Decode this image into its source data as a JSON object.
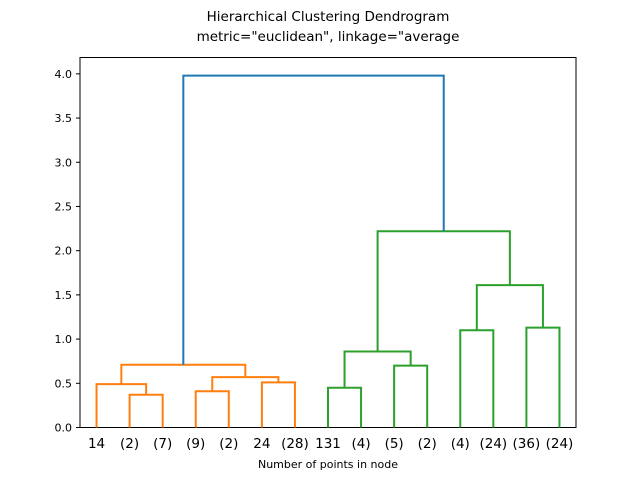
{
  "figure": {
    "kind": "matplotlib-dendrogram-plot"
  },
  "chart_data": {
    "type": "dendrogram",
    "title": "Hierarchical Clustering Dendrogram",
    "subtitle": "metric=\"euclidean\", linkage=\"average",
    "xlabel": "Number of points in node",
    "ylabel": "",
    "grid": false,
    "legend": "none",
    "ylim": [
      0,
      4.185
    ],
    "yticks": [
      "0.0",
      "0.5",
      "1.0",
      "1.5",
      "2.0",
      "2.5",
      "3.0",
      "3.5",
      "4.0"
    ],
    "leaf_labels": [
      "14",
      "(2)",
      "(7)",
      "(9)",
      "(2)",
      "24",
      "(28)",
      "131",
      "(4)",
      "(5)",
      "(2)",
      "(4)",
      "(24)",
      "(36)",
      "(24)"
    ],
    "colors": {
      "blue": "#1f77b4",
      "orange": "#ff7f0e",
      "green": "#2ca02c",
      "axis": "#000000"
    },
    "merges": [
      {
        "id": "m1",
        "left": "L1",
        "right": "L2",
        "height": 0.37,
        "color": "orange"
      },
      {
        "id": "m2",
        "left": "L0",
        "right": "m1",
        "height": 0.49,
        "color": "orange"
      },
      {
        "id": "m3",
        "left": "L3",
        "right": "L4",
        "height": 0.41,
        "color": "orange"
      },
      {
        "id": "m4",
        "left": "L5",
        "right": "L6",
        "height": 0.51,
        "color": "orange"
      },
      {
        "id": "m5",
        "left": "m3",
        "right": "m4",
        "height": 0.57,
        "color": "orange"
      },
      {
        "id": "m6",
        "left": "m2",
        "right": "m5",
        "height": 0.71,
        "color": "orange"
      },
      {
        "id": "m7",
        "left": "L7",
        "right": "L8",
        "height": 0.45,
        "color": "green"
      },
      {
        "id": "m8",
        "left": "L9",
        "right": "L10",
        "height": 0.7,
        "color": "green"
      },
      {
        "id": "m9",
        "left": "m7",
        "right": "m8",
        "height": 0.86,
        "color": "green"
      },
      {
        "id": "m10",
        "left": "L11",
        "right": "L12",
        "height": 1.1,
        "color": "green"
      },
      {
        "id": "m11",
        "left": "L13",
        "right": "L14",
        "height": 1.13,
        "color": "green"
      },
      {
        "id": "m12",
        "left": "m10",
        "right": "m11",
        "height": 1.61,
        "color": "green"
      },
      {
        "id": "m13",
        "left": "m9",
        "right": "m12",
        "height": 2.22,
        "color": "green"
      },
      {
        "id": "m14",
        "left": "m6",
        "right": "m13",
        "height": 3.98,
        "color": "blue"
      }
    ]
  }
}
